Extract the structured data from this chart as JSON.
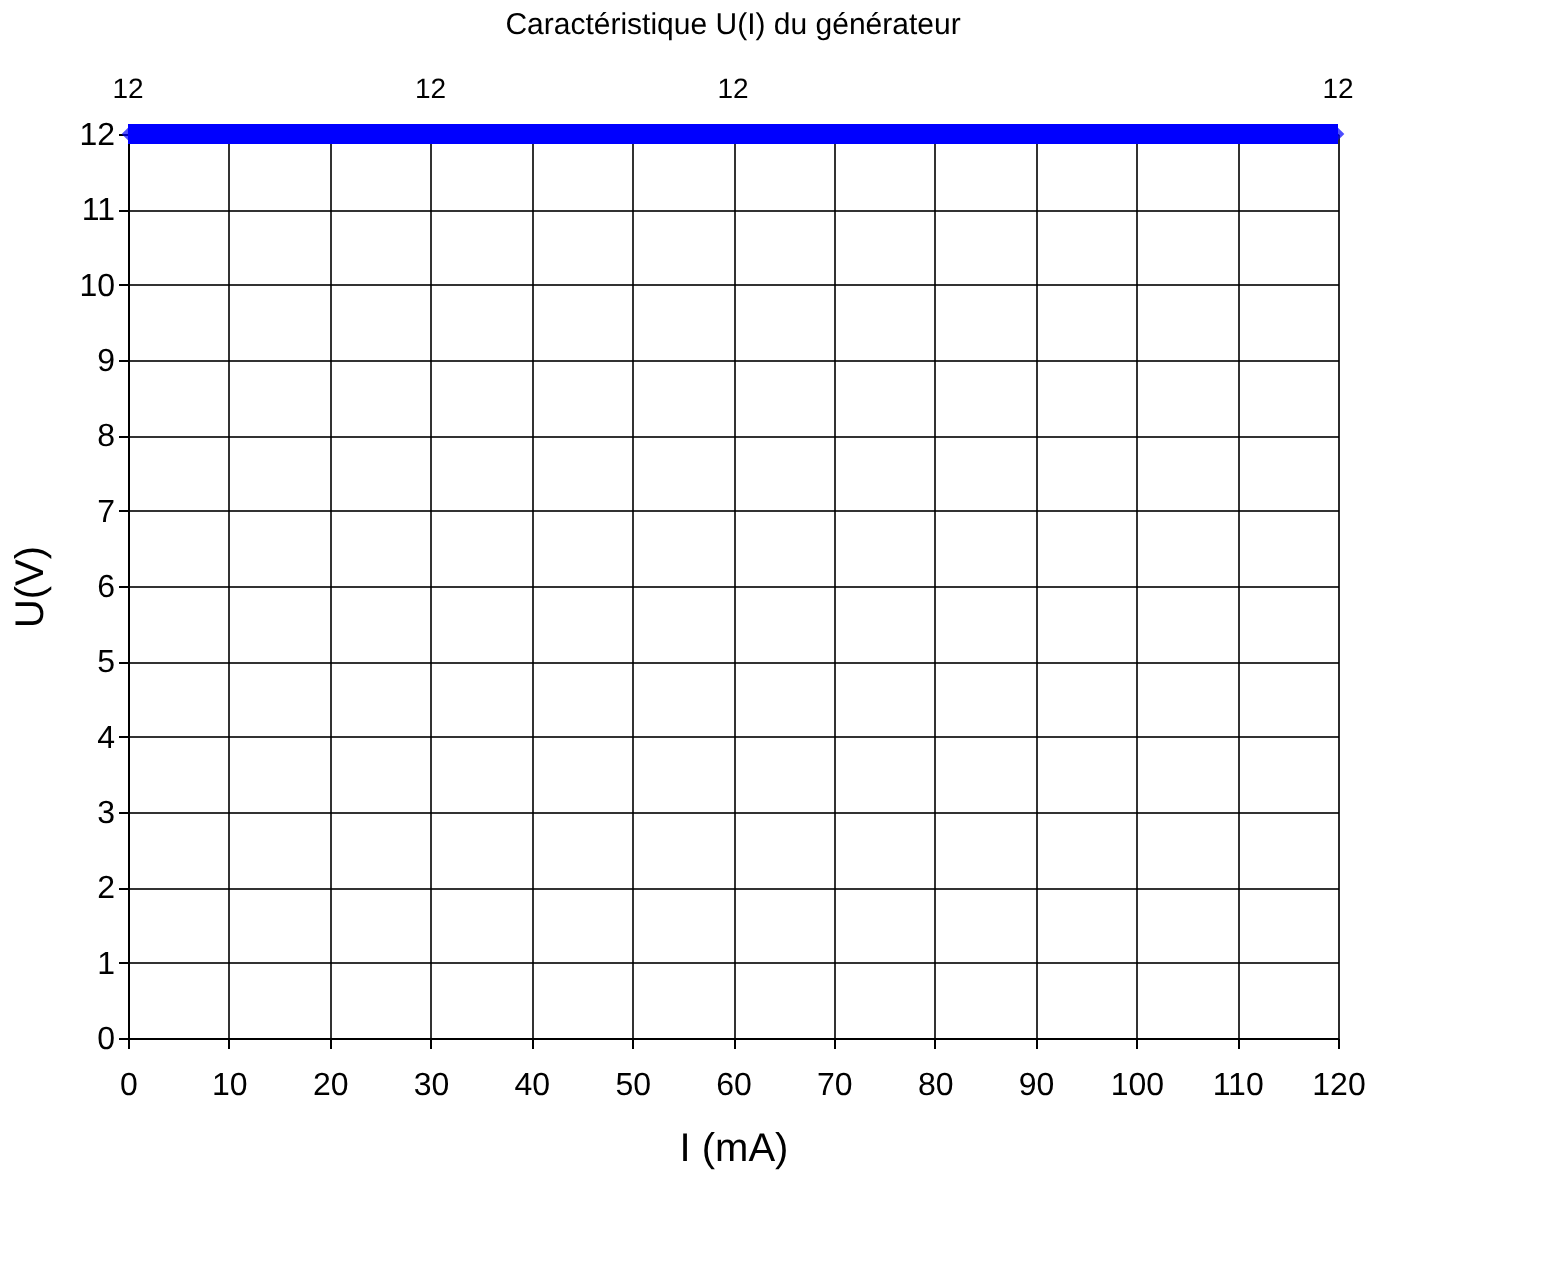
{
  "chart_data": {
    "type": "line",
    "title": "Caractéristique U(I) du générateur",
    "xlabel": "I (mA)",
    "ylabel": "U(V)",
    "x": [
      0,
      30,
      60,
      120
    ],
    "series": [
      {
        "color": "#0000ff",
        "values": [
          12,
          12,
          12,
          12
        ]
      }
    ],
    "xlim": [
      0,
      120
    ],
    "xticks": [
      0,
      10,
      20,
      30,
      40,
      50,
      60,
      70,
      80,
      90,
      100,
      110,
      120
    ],
    "ylim": [
      0,
      12
    ],
    "yticks": [
      0,
      1,
      2,
      3,
      4,
      5,
      6,
      7,
      8,
      9,
      10,
      11,
      12
    ],
    "grid": true,
    "marker": "diamond",
    "line_style": "solid",
    "data_labels": true
  }
}
